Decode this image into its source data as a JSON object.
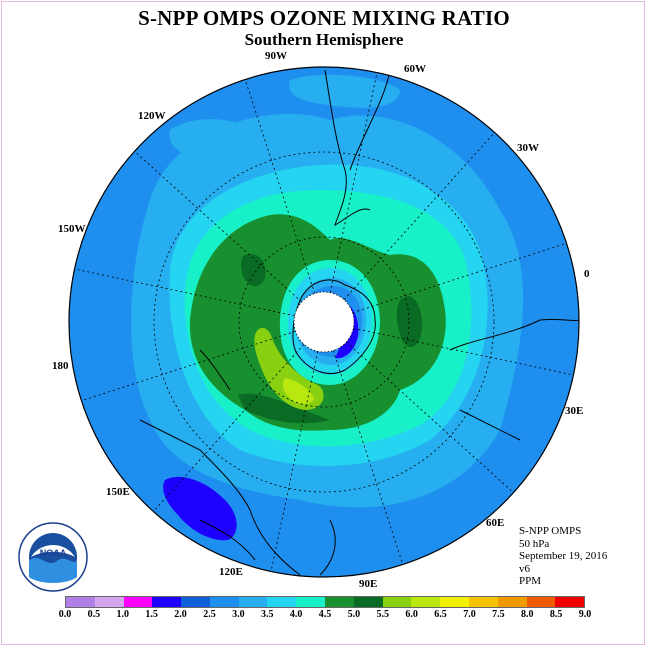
{
  "title": "S-NPP OMPS OZONE MIXING RATIO",
  "subtitle": "Southern Hemisphere",
  "longitude_labels": [
    "90W",
    "60W",
    "30W",
    "0",
    "30E",
    "60E",
    "90E",
    "120E",
    "150E",
    "180",
    "150W",
    "120W"
  ],
  "info": {
    "instrument": "S-NPP OMPS",
    "pressure": "50 hPa",
    "date": "September 19, 2016",
    "version": "v6",
    "units": "PPM"
  },
  "logo": {
    "text": "NOAA",
    "ring_text": "NATIONAL OCEANIC AND ATMOSPHERIC ADMINISTRATION · U.S. DEPARTMENT OF COMMERCE",
    "icon": "noaa-logo-icon"
  },
  "colorbar": {
    "ticks": [
      "0.0",
      "0.5",
      "1.0",
      "1.5",
      "2.0",
      "2.5",
      "3.0",
      "3.5",
      "4.0",
      "4.5",
      "5.0",
      "5.5",
      "6.0",
      "6.5",
      "7.0",
      "7.5",
      "8.0",
      "8.5",
      "9.0"
    ],
    "colors": [
      "#b07fe6",
      "#d4a6f0",
      "#ff00ff",
      "#1e00ff",
      "#0f5fd8",
      "#1f8fef",
      "#26aef0",
      "#24d4f0",
      "#18f0c8",
      "#189030",
      "#0a6b24",
      "#88d010",
      "#b8e810",
      "#f0f000",
      "#f5c400",
      "#f09a00",
      "#f05a00",
      "#f00000",
      "#8a5a3a"
    ]
  }
}
